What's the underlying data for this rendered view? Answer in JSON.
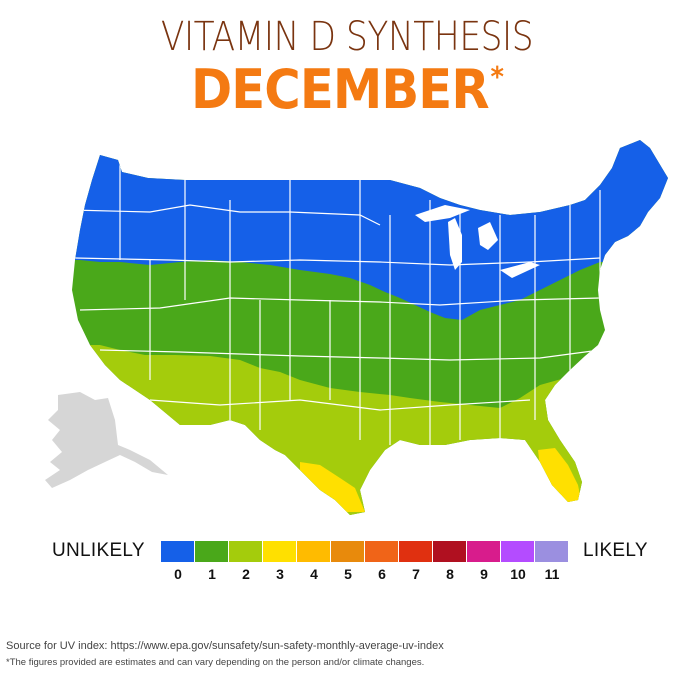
{
  "header": {
    "title": "VITAMIN D SYNTHESIS",
    "month": "DECEMBER",
    "month_mark": "*"
  },
  "map": {
    "region": "United States",
    "zones": [
      {
        "uv_index": 0,
        "description": "northern band",
        "color": "#1560e8"
      },
      {
        "uv_index": 1,
        "description": "central band",
        "color": "#4aa81a"
      },
      {
        "uv_index": 2,
        "description": "southern band",
        "color": "#a4cc0c"
      },
      {
        "uv_index": 3,
        "description": "Florida and south Texas",
        "color": "#ffe000"
      }
    ],
    "alaska_color": "#d6d6d6"
  },
  "legend": {
    "left_label": "UNLIKELY",
    "right_label": "LIKELY",
    "items": [
      {
        "value": "0",
        "color": "#1560e8"
      },
      {
        "value": "1",
        "color": "#4aa81a"
      },
      {
        "value": "2",
        "color": "#a4cc0c"
      },
      {
        "value": "3",
        "color": "#ffe000"
      },
      {
        "value": "4",
        "color": "#ffbb00"
      },
      {
        "value": "5",
        "color": "#e88a0c"
      },
      {
        "value": "6",
        "color": "#f06418"
      },
      {
        "value": "7",
        "color": "#e03010"
      },
      {
        "value": "8",
        "color": "#b01020"
      },
      {
        "value": "9",
        "color": "#d81c8c"
      },
      {
        "value": "10",
        "color": "#b44cff"
      },
      {
        "value": "11",
        "color": "#9b8fe0"
      }
    ]
  },
  "footer": {
    "source": "Source for UV index: https://www.epa.gov/sunsafety/sun-safety-monthly-average-uv-index",
    "note": "*The figures provided are estimates and can vary depending on the person and/or climate changes."
  }
}
